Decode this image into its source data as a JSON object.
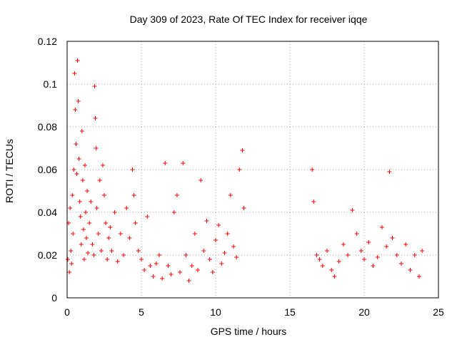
{
  "chart_data": {
    "type": "scatter",
    "title": "Day 309 of 2023, Rate Of TEC Index for receiver iqqe",
    "xlabel": "GPS time / hours",
    "ylabel": "ROTI / TECUs",
    "xlim": [
      0,
      25
    ],
    "ylim": [
      0,
      0.12
    ],
    "x_ticks": [
      "0",
      "5",
      "10",
      "15",
      "20",
      "25"
    ],
    "y_ticks": [
      "0",
      "0.02",
      "0.04",
      "0.06",
      "0.08",
      "0.1",
      "0.12"
    ],
    "grid": true,
    "marker": "+",
    "series_color": "#ff0000",
    "points": [
      [
        0.05,
        0.018
      ],
      [
        0.1,
        0.035
      ],
      [
        0.15,
        0.012
      ],
      [
        0.2,
        0.042
      ],
      [
        0.25,
        0.022
      ],
      [
        0.3,
        0.016
      ],
      [
        0.35,
        0.048
      ],
      [
        0.4,
        0.03
      ],
      [
        0.45,
        0.06
      ],
      [
        0.5,
        0.105
      ],
      [
        0.55,
        0.088
      ],
      [
        0.6,
        0.072
      ],
      [
        0.65,
        0.058
      ],
      [
        0.7,
        0.111
      ],
      [
        0.75,
        0.092
      ],
      [
        0.8,
        0.065
      ],
      [
        0.85,
        0.045
      ],
      [
        0.9,
        0.038
      ],
      [
        0.95,
        0.025
      ],
      [
        1.0,
        0.078
      ],
      [
        1.05,
        0.055
      ],
      [
        1.1,
        0.032
      ],
      [
        1.15,
        0.018
      ],
      [
        1.2,
        0.062
      ],
      [
        1.25,
        0.04
      ],
      [
        1.3,
        0.028
      ],
      [
        1.35,
        0.05
      ],
      [
        1.4,
        0.021
      ],
      [
        1.5,
        0.035
      ],
      [
        1.6,
        0.045
      ],
      [
        1.7,
        0.025
      ],
      [
        1.8,
        0.02
      ],
      [
        1.85,
        0.099
      ],
      [
        1.9,
        0.084
      ],
      [
        1.95,
        0.07
      ],
      [
        2.0,
        0.042
      ],
      [
        2.1,
        0.03
      ],
      [
        2.2,
        0.055
      ],
      [
        2.3,
        0.022
      ],
      [
        2.4,
        0.062
      ],
      [
        2.5,
        0.048
      ],
      [
        2.6,
        0.035
      ],
      [
        2.7,
        0.018
      ],
      [
        2.8,
        0.028
      ],
      [
        2.9,
        0.033
      ],
      [
        3.0,
        0.022
      ],
      [
        3.2,
        0.04
      ],
      [
        3.4,
        0.017
      ],
      [
        3.6,
        0.03
      ],
      [
        3.8,
        0.02
      ],
      [
        4.0,
        0.042
      ],
      [
        4.2,
        0.028
      ],
      [
        4.4,
        0.06
      ],
      [
        4.5,
        0.048
      ],
      [
        4.6,
        0.035
      ],
      [
        4.8,
        0.022
      ],
      [
        5.0,
        0.018
      ],
      [
        5.2,
        0.013
      ],
      [
        5.4,
        0.038
      ],
      [
        5.6,
        0.015
      ],
      [
        5.8,
        0.01
      ],
      [
        6.0,
        0.016
      ],
      [
        6.2,
        0.02
      ],
      [
        6.4,
        0.009
      ],
      [
        6.6,
        0.063
      ],
      [
        6.8,
        0.015
      ],
      [
        7.0,
        0.011
      ],
      [
        7.2,
        0.04
      ],
      [
        7.4,
        0.048
      ],
      [
        7.6,
        0.012
      ],
      [
        7.8,
        0.063
      ],
      [
        8.0,
        0.02
      ],
      [
        8.2,
        0.008
      ],
      [
        8.4,
        0.015
      ],
      [
        8.6,
        0.03
      ],
      [
        8.8,
        0.013
      ],
      [
        9.0,
        0.055
      ],
      [
        9.2,
        0.022
      ],
      [
        9.4,
        0.036
      ],
      [
        9.6,
        0.018
      ],
      [
        9.8,
        0.012
      ],
      [
        10.0,
        0.027
      ],
      [
        10.2,
        0.034
      ],
      [
        10.4,
        0.016
      ],
      [
        10.6,
        0.021
      ],
      [
        10.8,
        0.03
      ],
      [
        11.0,
        0.048
      ],
      [
        11.2,
        0.024
      ],
      [
        11.4,
        0.019
      ],
      [
        11.6,
        0.06
      ],
      [
        11.8,
        0.069
      ],
      [
        11.9,
        0.042
      ],
      [
        16.5,
        0.06
      ],
      [
        16.6,
        0.045
      ],
      [
        16.8,
        0.02
      ],
      [
        17.0,
        0.018
      ],
      [
        17.2,
        0.015
      ],
      [
        17.5,
        0.022
      ],
      [
        17.8,
        0.013
      ],
      [
        18.0,
        0.01
      ],
      [
        18.3,
        0.017
      ],
      [
        18.6,
        0.025
      ],
      [
        18.9,
        0.02
      ],
      [
        19.2,
        0.041
      ],
      [
        19.5,
        0.03
      ],
      [
        19.8,
        0.022
      ],
      [
        20.0,
        0.018
      ],
      [
        20.3,
        0.026
      ],
      [
        20.6,
        0.015
      ],
      [
        20.9,
        0.019
      ],
      [
        21.2,
        0.033
      ],
      [
        21.5,
        0.024
      ],
      [
        21.7,
        0.059
      ],
      [
        21.9,
        0.028
      ],
      [
        22.2,
        0.02
      ],
      [
        22.5,
        0.016
      ],
      [
        22.8,
        0.025
      ],
      [
        23.1,
        0.013
      ],
      [
        23.4,
        0.02
      ],
      [
        23.7,
        0.01
      ],
      [
        23.9,
        0.022
      ]
    ]
  }
}
